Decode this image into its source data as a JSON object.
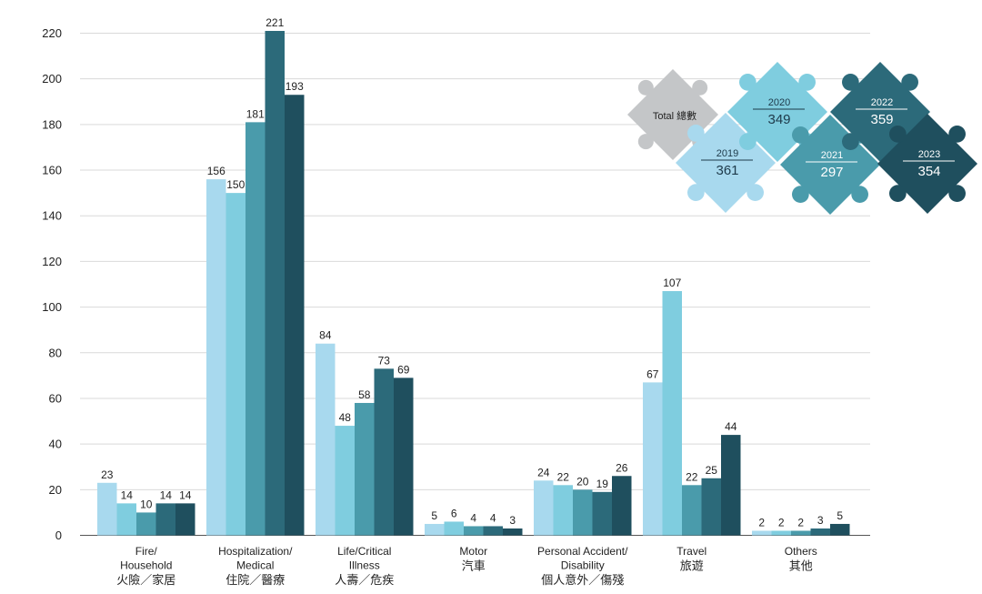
{
  "chart_data": {
    "type": "bar",
    "title": "",
    "xlabel": "",
    "ylabel": "",
    "ylim": [
      0,
      220
    ],
    "yticks": [
      0,
      20,
      40,
      60,
      80,
      100,
      120,
      140,
      160,
      180,
      200,
      220
    ],
    "grid": true,
    "categories": [
      {
        "en": [
          "Fire/",
          "Household"
        ],
        "zh": "火險／家居"
      },
      {
        "en": [
          "Hospitalization/",
          "Medical"
        ],
        "zh": "住院／醫療"
      },
      {
        "en": [
          "Life/Critical",
          "Illness"
        ],
        "zh": "人壽／危疾"
      },
      {
        "en": [
          "Motor"
        ],
        "zh": "汽車"
      },
      {
        "en": [
          "Personal Accident/",
          "Disability"
        ],
        "zh": "個人意外／傷殘"
      },
      {
        "en": [
          "Travel"
        ],
        "zh": "旅遊"
      },
      {
        "en": [
          "Others"
        ],
        "zh": "其他"
      }
    ],
    "series": [
      {
        "name": "2019",
        "color": "#a8d9ee",
        "values": [
          23,
          156,
          84,
          5,
          24,
          67,
          2
        ]
      },
      {
        "name": "2020",
        "color": "#7fcddf",
        "values": [
          14,
          150,
          48,
          6,
          22,
          107,
          2
        ]
      },
      {
        "name": "2021",
        "color": "#4a9bab",
        "values": [
          10,
          181,
          58,
          4,
          20,
          22,
          2
        ]
      },
      {
        "name": "2022",
        "color": "#2c6a7a",
        "values": [
          14,
          221,
          73,
          4,
          19,
          25,
          3
        ]
      },
      {
        "name": "2023",
        "color": "#1f4f5e",
        "values": [
          14,
          193,
          69,
          3,
          26,
          44,
          5
        ]
      }
    ]
  },
  "legend": {
    "total_label": "Total 總數",
    "total_color": "#c4c6c8",
    "pieces": [
      {
        "year": "2019",
        "total": "361",
        "color": "#a8d9ee",
        "dark_text": true
      },
      {
        "year": "2020",
        "total": "349",
        "color": "#7fcddf",
        "dark_text": true
      },
      {
        "year": "2021",
        "total": "297",
        "color": "#4a9bab",
        "dark_text": false
      },
      {
        "year": "2022",
        "total": "359",
        "color": "#2c6a7a",
        "dark_text": false
      },
      {
        "year": "2023",
        "total": "354",
        "color": "#1f4f5e",
        "dark_text": false
      }
    ]
  }
}
